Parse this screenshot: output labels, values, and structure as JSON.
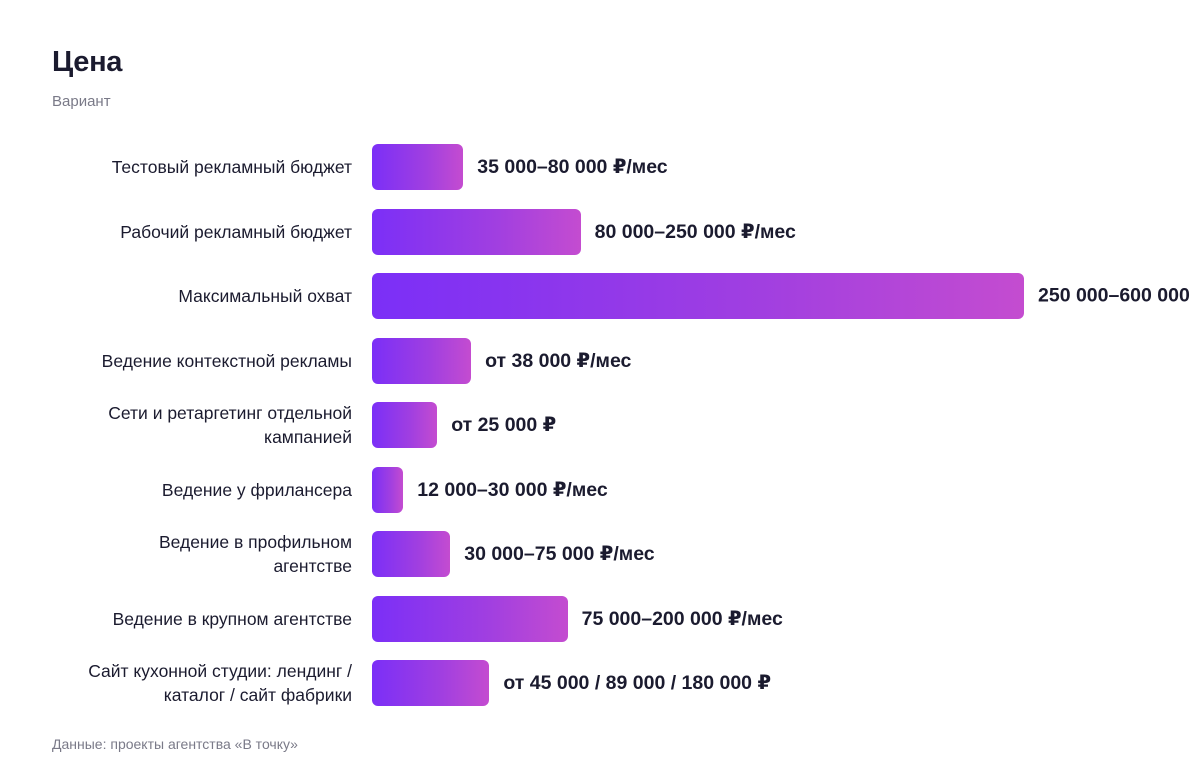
{
  "chart_data": {
    "type": "bar",
    "title": "Цена",
    "subtitle": "Вариант",
    "note": "Данные: проекты агентства «В точку»",
    "categories": [
      "Тестовый рекламный бюджет",
      "Рабочий рекламный бюджет",
      "Максимальный охват",
      "Ведение контекстной рекламы",
      "Сети и ретаргетинг отдельной\nкампанией",
      "Ведение у фрилансера",
      "Ведение в профильном\nагентстве",
      "Ведение в крупном агентстве",
      "Сайт кухонной студии: лендинг /\nкаталог / сайт фабрики"
    ],
    "values": [
      35000,
      80000,
      250000,
      38000,
      25000,
      12000,
      30000,
      75000,
      45000
    ],
    "value_labels": [
      "35 000–80 000 ₽/мес",
      "80 000–250 000 ₽/мес",
      "250 000–600 000",
      "от 38 000 ₽/мес",
      "от 25 000 ₽",
      "12 000–30 000 ₽/мес",
      "30 000–75 000 ₽/мес",
      "75 000–200 000 ₽/мес",
      "от 45 000 / 89 000 / 180 000 ₽"
    ],
    "color": "#7b2ff7"
  }
}
